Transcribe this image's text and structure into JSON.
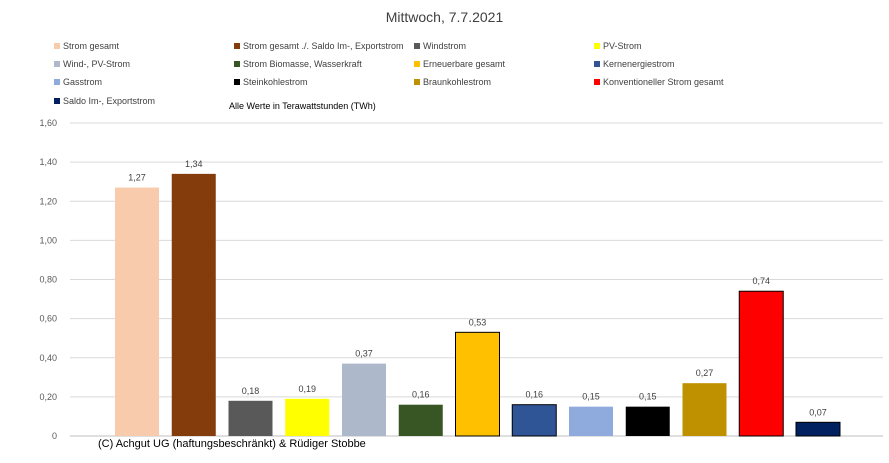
{
  "chart_data": {
    "type": "bar",
    "title": "Mittwoch, 7.7.2021",
    "note": "Alle Werte in Terawattstunden (TWh)",
    "ylim": [
      0,
      1.6
    ],
    "yticks": [
      "0",
      "0,20",
      "0,40",
      "0,60",
      "0,80",
      "1,00",
      "1,20",
      "1,40",
      "1,60"
    ],
    "ytick_values": [
      0,
      0.2,
      0.4,
      0.6,
      0.8,
      1.0,
      1.2,
      1.4,
      1.6
    ],
    "grid": true,
    "legend_position": "top",
    "series": [
      {
        "name": "Strom gesamt",
        "value": 1.27,
        "label": "1,27",
        "color": "#F8CBAD"
      },
      {
        "name": "Strom gesamt ./. Saldo Im-, Exportstrom",
        "value": 1.34,
        "label": "1,34",
        "color": "#843C0C"
      },
      {
        "name": "Windstrom",
        "value": 0.18,
        "label": "0,18",
        "color": "#595959"
      },
      {
        "name": "PV-Strom",
        "value": 0.19,
        "label": "0,19",
        "color": "#FFFF00"
      },
      {
        "name": "Wind-, PV-Strom",
        "value": 0.37,
        "label": "0,37",
        "color": "#ADB9CA"
      },
      {
        "name": "Strom Biomasse, Wasserkraft",
        "value": 0.16,
        "label": "0,16",
        "color": "#375623"
      },
      {
        "name": "Erneuerbare gesamt",
        "value": 0.53,
        "label": "0,53",
        "color": "#FFC000"
      },
      {
        "name": "Kernenergiestrom",
        "value": 0.16,
        "label": "0,16",
        "color": "#2F5597"
      },
      {
        "name": "Gasstrom",
        "value": 0.15,
        "label": "0,15",
        "color": "#8FAADC"
      },
      {
        "name": "Steinkohlestrom",
        "value": 0.15,
        "label": "0,15",
        "color": "#000000"
      },
      {
        "name": "Braunkohlestrom",
        "value": 0.27,
        "label": "0,27",
        "color": "#BF9000"
      },
      {
        "name": "Konventioneller Strom gesamt",
        "value": 0.74,
        "label": "0,74",
        "color": "#FF0000"
      },
      {
        "name": "Saldo Im-, Exportstrom",
        "value": 0.07,
        "label": "0,07",
        "color": "#002060"
      }
    ]
  },
  "footer": {
    "copyright": "(C) Achgut UG (haftungsbeschränkt) & Rüdiger Stobbe"
  }
}
